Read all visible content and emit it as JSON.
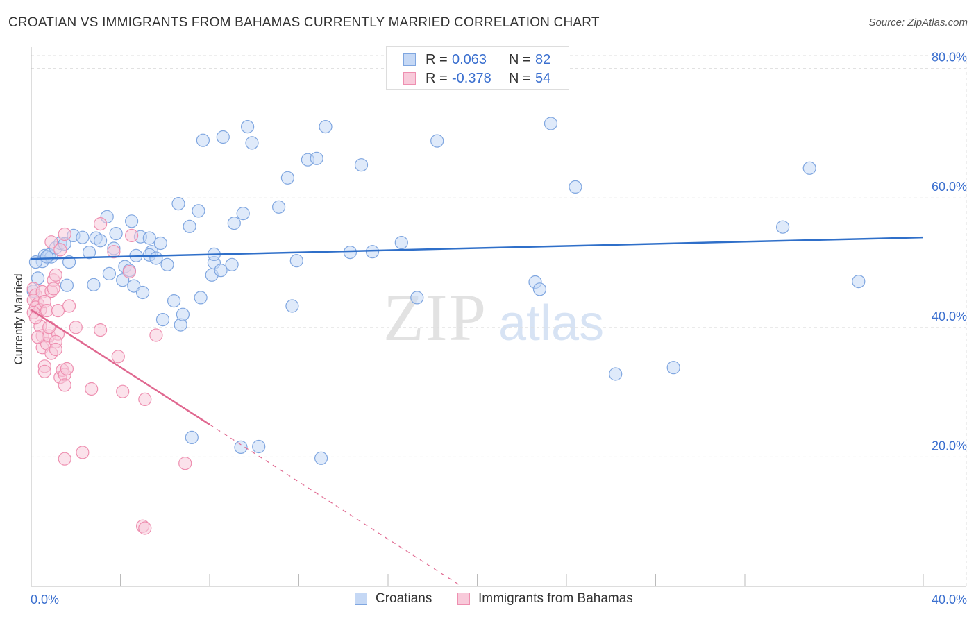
{
  "header": {
    "title": "CROATIAN VS IMMIGRANTS FROM BAHAMAS CURRENTLY MARRIED CORRELATION CHART",
    "source": "Source: ZipAtlas.com"
  },
  "legend": {
    "rows": [
      {
        "r_label": "R =",
        "r_value": "0.063",
        "n_label": "N =",
        "n_value": "82"
      },
      {
        "r_label": "R =",
        "r_value": "-0.378",
        "n_label": "N =",
        "n_value": "54"
      }
    ]
  },
  "bottom_legend": {
    "croatians": "Croatians",
    "bahamas": "Immigrants from Bahamas"
  },
  "watermark": {
    "zip": "ZIP",
    "atlas": "atlas"
  },
  "colors": {
    "blue": "#7fa6e0",
    "blue_fill": "#c5d8f5",
    "blue_line": "#2f6fc9",
    "pink": "#ee8fb0",
    "pink_fill": "#f8cada",
    "pink_line": "#e06890",
    "axis_label": "#3a6fcf",
    "grid": "#dddddd"
  },
  "chart_data": {
    "type": "scatter",
    "title": "CROATIAN VS IMMIGRANTS FROM BAHAMAS CURRENTLY MARRIED CORRELATION CHART",
    "xlabel": "",
    "ylabel": "Currently Married",
    "xlim": [
      0,
      40
    ],
    "ylim": [
      0,
      82
    ],
    "x_tick_labels": [
      {
        "value": 0,
        "label": "0.0%"
      },
      {
        "value": 40,
        "label": "40.0%"
      }
    ],
    "y_tick_labels": [
      {
        "value": 20,
        "label": "20.0%"
      },
      {
        "value": 40,
        "label": "40.0%"
      },
      {
        "value": 60,
        "label": "60.0%"
      },
      {
        "value": 80,
        "label": "80.0%"
      }
    ],
    "x_minor_ticks": [
      0,
      4,
      8,
      12,
      16,
      20,
      24,
      28,
      32,
      36,
      40
    ],
    "series": [
      {
        "name": "Croatians",
        "color": "#7fa6e0",
        "R": 0.063,
        "N": 82,
        "trend": {
          "x": [
            0,
            40
          ],
          "y": [
            50.6,
            53.9
          ],
          "dashed_from": null
        },
        "points": [
          [
            0.3,
            47.6
          ],
          [
            0.1,
            45.6
          ],
          [
            0.6,
            51.1
          ],
          [
            0.8,
            51.2
          ],
          [
            0.5,
            50.2
          ],
          [
            0.9,
            50.9
          ],
          [
            1.1,
            52.3
          ],
          [
            1.3,
            53.0
          ],
          [
            1.5,
            52.9
          ],
          [
            1.7,
            50.1
          ],
          [
            1.9,
            54.2
          ],
          [
            2.3,
            53.9
          ],
          [
            2.6,
            51.6
          ],
          [
            2.9,
            53.8
          ],
          [
            3.1,
            53.4
          ],
          [
            3.4,
            57.1
          ],
          [
            3.5,
            48.3
          ],
          [
            3.7,
            52.2
          ],
          [
            3.8,
            54.5
          ],
          [
            4.1,
            47.3
          ],
          [
            4.2,
            49.4
          ],
          [
            4.4,
            48.8
          ],
          [
            4.5,
            56.4
          ],
          [
            4.6,
            46.4
          ],
          [
            4.9,
            54.0
          ],
          [
            4.7,
            51.1
          ],
          [
            5.0,
            45.4
          ],
          [
            5.4,
            51.7
          ],
          [
            5.3,
            51.2
          ],
          [
            5.6,
            50.7
          ],
          [
            5.3,
            53.8
          ],
          [
            5.8,
            53.0
          ],
          [
            6.1,
            49.7
          ],
          [
            6.4,
            44.1
          ],
          [
            5.9,
            41.2
          ],
          [
            6.7,
            40.4
          ],
          [
            6.8,
            42.0
          ],
          [
            6.6,
            59.1
          ],
          [
            7.1,
            55.6
          ],
          [
            7.5,
            58.0
          ],
          [
            7.6,
            44.6
          ],
          [
            8.1,
            48.1
          ],
          [
            8.2,
            50.0
          ],
          [
            8.5,
            48.8
          ],
          [
            8.2,
            51.3
          ],
          [
            7.7,
            68.9
          ],
          [
            8.6,
            69.4
          ],
          [
            9.0,
            49.7
          ],
          [
            9.1,
            56.1
          ],
          [
            9.5,
            57.6
          ],
          [
            9.7,
            71.0
          ],
          [
            9.9,
            68.5
          ],
          [
            7.2,
            23.0
          ],
          [
            9.4,
            21.5
          ],
          [
            10.2,
            21.6
          ],
          [
            11.1,
            58.6
          ],
          [
            11.5,
            63.1
          ],
          [
            11.7,
            43.3
          ],
          [
            11.9,
            50.3
          ],
          [
            12.4,
            65.9
          ],
          [
            12.8,
            66.1
          ],
          [
            13.0,
            19.8
          ],
          [
            13.2,
            71.0
          ],
          [
            14.3,
            51.6
          ],
          [
            14.8,
            65.1
          ],
          [
            15.3,
            51.7
          ],
          [
            16.6,
            53.1
          ],
          [
            17.3,
            44.6
          ],
          [
            18.2,
            68.8
          ],
          [
            22.6,
            47.0
          ],
          [
            22.8,
            45.9
          ],
          [
            23.3,
            71.5
          ],
          [
            24.4,
            61.7
          ],
          [
            26.2,
            32.8
          ],
          [
            28.8,
            33.8
          ],
          [
            33.7,
            55.5
          ],
          [
            34.9,
            64.6
          ],
          [
            37.1,
            47.1
          ],
          [
            0.7,
            50.9
          ],
          [
            1.6,
            46.5
          ],
          [
            2.8,
            46.6
          ],
          [
            0.2,
            50.1
          ]
        ]
      },
      {
        "name": "Immigrants from Bahamas",
        "color": "#ee8fb0",
        "R": -0.378,
        "N": 54,
        "trend": {
          "x": [
            0,
            8.0
          ],
          "y": [
            42.7,
            25.0
          ],
          "dashed_to": [
            19.3,
            0
          ]
        },
        "points": [
          [
            0.1,
            46.0
          ],
          [
            0.2,
            45.0
          ],
          [
            0.1,
            44.2
          ],
          [
            0.3,
            43.6
          ],
          [
            0.2,
            43.1
          ],
          [
            0.4,
            42.7
          ],
          [
            0.1,
            42.3
          ],
          [
            0.5,
            45.5
          ],
          [
            0.6,
            44.0
          ],
          [
            0.7,
            42.6
          ],
          [
            0.4,
            40.2
          ],
          [
            0.5,
            38.7
          ],
          [
            0.5,
            36.9
          ],
          [
            0.7,
            37.5
          ],
          [
            0.6,
            34.0
          ],
          [
            0.6,
            33.2
          ],
          [
            0.8,
            38.7
          ],
          [
            0.9,
            36.0
          ],
          [
            0.9,
            45.6
          ],
          [
            1.0,
            47.3
          ],
          [
            1.1,
            48.1
          ],
          [
            1.0,
            46.0
          ],
          [
            1.2,
            42.6
          ],
          [
            1.2,
            39.0
          ],
          [
            1.1,
            37.8
          ],
          [
            1.1,
            36.6
          ],
          [
            1.3,
            32.3
          ],
          [
            1.4,
            33.4
          ],
          [
            1.5,
            32.7
          ],
          [
            1.5,
            31.1
          ],
          [
            1.6,
            33.6
          ],
          [
            0.9,
            53.2
          ],
          [
            1.5,
            54.4
          ],
          [
            1.7,
            43.3
          ],
          [
            2.0,
            40.0
          ],
          [
            2.3,
            20.7
          ],
          [
            1.5,
            19.7
          ],
          [
            3.1,
            56.0
          ],
          [
            3.1,
            39.6
          ],
          [
            3.7,
            51.7
          ],
          [
            3.9,
            35.5
          ],
          [
            4.1,
            30.1
          ],
          [
            4.4,
            48.6
          ],
          [
            4.5,
            54.2
          ],
          [
            5.1,
            28.9
          ],
          [
            5.6,
            38.8
          ],
          [
            5.0,
            9.3
          ],
          [
            5.1,
            9.0
          ],
          [
            6.9,
            19.0
          ],
          [
            0.3,
            38.5
          ],
          [
            0.2,
            41.5
          ],
          [
            0.8,
            40.0
          ],
          [
            1.3,
            52.0
          ],
          [
            2.7,
            30.5
          ]
        ]
      }
    ]
  }
}
